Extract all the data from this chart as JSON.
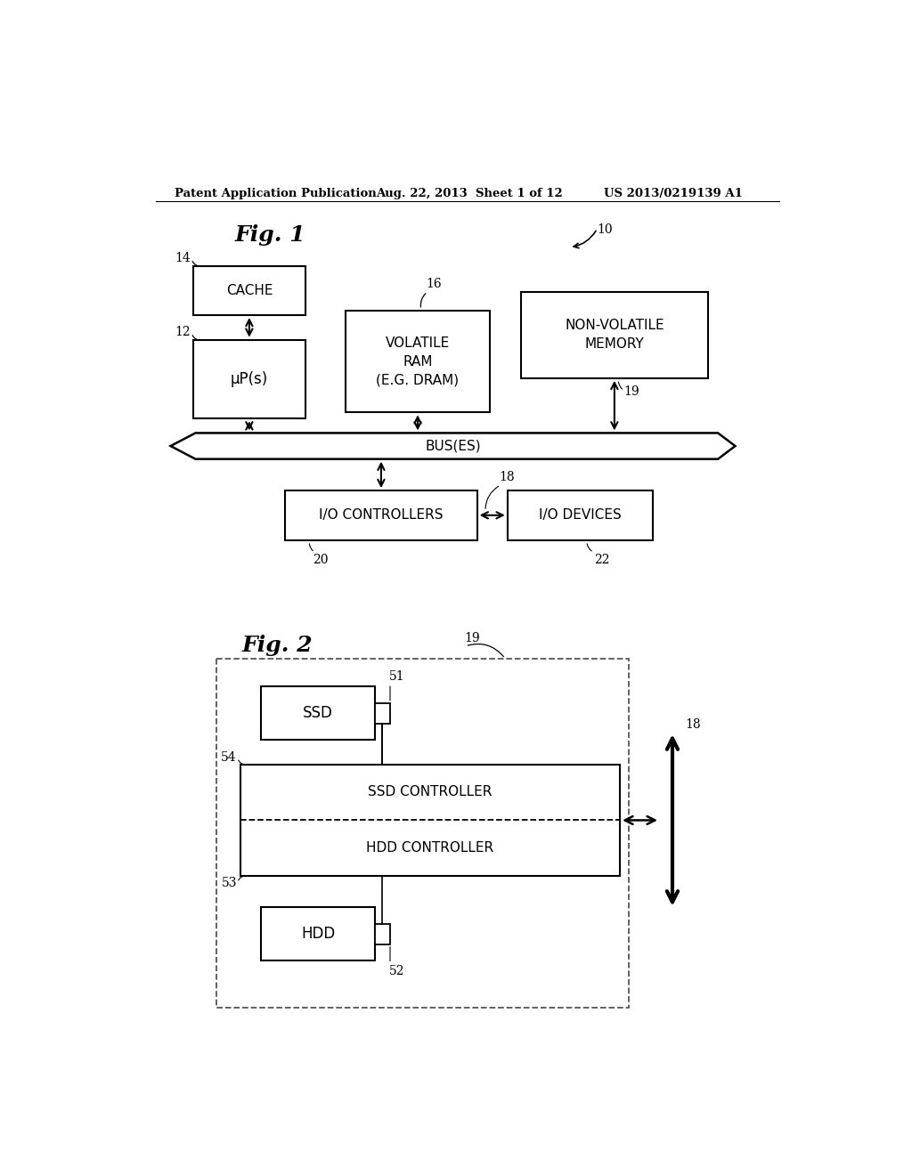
{
  "header_left": "Patent Application Publication",
  "header_mid": "Aug. 22, 2013  Sheet 1 of 12",
  "header_right": "US 2013/0219139 A1",
  "fig1_title": "Fig. 1",
  "fig2_title": "Fig. 2",
  "bg_color": "#ffffff",
  "label_10": "10",
  "label_12": "12",
  "label_14": "14",
  "label_16": "16",
  "label_18": "18",
  "label_19": "19",
  "label_20": "20",
  "label_22": "22",
  "label_51": "51",
  "label_52": "52",
  "label_53": "53",
  "label_54": "54",
  "cache_text": "CACHE",
  "up_text": "μP(s)",
  "volatile_text": "VOLATILE\nRAM\n(E.G. DRAM)",
  "nonvolatile_text": "NON-VOLATILE\nMEMORY",
  "buses_text": "BUS(ES)",
  "io_ctrl_text": "I/O CONTROLLERS",
  "io_dev_text": "I/O DEVICES",
  "ssd_text": "SSD",
  "ssd_ctrl_text": "SSD CONTROLLER",
  "hdd_ctrl_text": "HDD CONTROLLER",
  "hdd_text": "HDD"
}
